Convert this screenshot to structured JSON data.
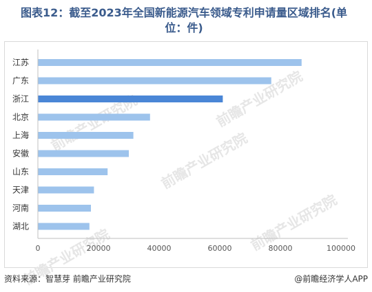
{
  "title": "图表12：截至2023年全国新能源汽车领域专利申请量区域排名(单位：件)",
  "footer": {
    "source": "资料来源：智慧芽 前瞻产业研究院",
    "brand": "@前瞻经济学人APP"
  },
  "watermark": "前瞻产业研究院",
  "chart_data": {
    "type": "bar",
    "orientation": "horizontal",
    "categories": [
      "江苏",
      "广东",
      "浙江",
      "北京",
      "上海",
      "安徽",
      "山东",
      "天津",
      "河南",
      "湖北"
    ],
    "values": [
      87000,
      77000,
      61000,
      37000,
      31500,
      30000,
      23000,
      18500,
      17500,
      17000
    ],
    "highlight_index": 2,
    "xlim": [
      0,
      100000
    ],
    "xticks": [
      0,
      20000,
      40000,
      60000,
      80000,
      100000
    ],
    "colors": {
      "bar": "#9dc3ec",
      "highlight": "#4a86d6",
      "axis": "#bfbfbf",
      "tick_text": "#555555"
    },
    "grid": false
  }
}
